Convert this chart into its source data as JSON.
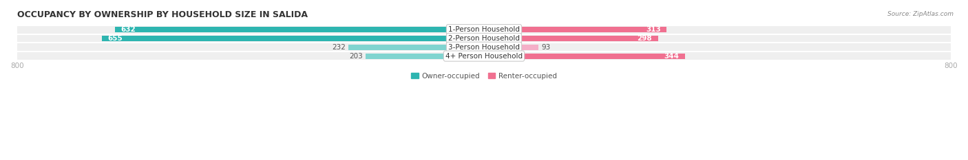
{
  "title": "OCCUPANCY BY OWNERSHIP BY HOUSEHOLD SIZE IN SALIDA",
  "source": "Source: ZipAtlas.com",
  "categories": [
    "1-Person Household",
    "2-Person Household",
    "3-Person Household",
    "4+ Person Household"
  ],
  "owner_values": [
    632,
    655,
    232,
    203
  ],
  "renter_values": [
    313,
    298,
    93,
    344
  ],
  "owner_color_dark": "#2db5b0",
  "owner_color_light": "#80d4d0",
  "renter_color_dark": "#f07090",
  "renter_color_light": "#f5afc8",
  "row_bg_color": "#efefef",
  "axis_max": 800,
  "axis_min": -800,
  "legend_owner": "Owner-occupied",
  "legend_renter": "Renter-occupied",
  "title_fontsize": 9,
  "label_fontsize": 7.5,
  "tick_fontsize": 7.5,
  "source_fontsize": 6.5,
  "bar_height": 0.62
}
